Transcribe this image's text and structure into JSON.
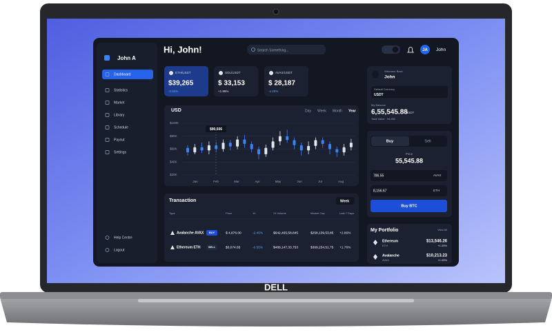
{
  "brand": "DELL",
  "sidebar": {
    "user": "John A",
    "menu": [
      "Dashboard",
      "Statistics",
      "Market",
      "Library",
      "Schedule",
      "Payout",
      "Settings"
    ],
    "footer": [
      "Help Centre",
      "Logout"
    ]
  },
  "header": {
    "greeting": "Hi, John!",
    "search": "Search Something...",
    "avatar": "JA",
    "user": "John"
  },
  "tickers": [
    {
      "pair": "ETH/USDT",
      "price": "$39,265",
      "change": "-2.55%"
    },
    {
      "pair": "SOL/USDT",
      "price": "$ 33,153",
      "change": "+1.95%"
    },
    {
      "pair": "AVAX/USDT",
      "price": "$ 28,187",
      "change": "-4.25%"
    }
  ],
  "price_chart": {
    "currency": "USD",
    "ranges": [
      "Day",
      "Week",
      "Month",
      "Year"
    ],
    "tooltip": "$90,506",
    "ylim": [
      20,
      100
    ],
    "yticks": [
      {
        "value": 100,
        "label": "$100K"
      },
      {
        "value": 80,
        "label": "$80K"
      },
      {
        "value": 60,
        "label": "$60K"
      },
      {
        "value": 40,
        "label": "$40K"
      },
      {
        "value": 20,
        "label": "$20K"
      }
    ],
    "months": [
      "Jan",
      "Feb",
      "Mar",
      "Apr",
      "May",
      "Jun",
      "Jul",
      "Aug"
    ],
    "open": [
      62,
      55,
      63,
      58,
      66,
      60,
      70,
      64,
      75,
      68,
      60,
      52,
      62,
      72,
      80,
      74,
      66,
      58,
      65,
      74,
      68,
      60,
      55,
      63
    ],
    "close": [
      55,
      63,
      58,
      66,
      60,
      70,
      64,
      75,
      68,
      60,
      52,
      62,
      72,
      80,
      74,
      66,
      58,
      65,
      74,
      68,
      60,
      55,
      63,
      70
    ],
    "low": [
      50,
      52,
      54,
      52,
      55,
      56,
      58,
      60,
      62,
      55,
      44,
      48,
      58,
      66,
      70,
      60,
      50,
      52,
      60,
      62,
      52,
      48,
      50,
      58
    ],
    "high": [
      66,
      68,
      70,
      72,
      71,
      75,
      74,
      80,
      82,
      72,
      64,
      67,
      78,
      88,
      90,
      78,
      70,
      72,
      78,
      78,
      72,
      64,
      68,
      76
    ]
  },
  "transactions": {
    "title": "Transaction",
    "period": "Week",
    "columns": [
      "Type",
      "Price",
      "1h",
      "24 Volume",
      "Market Cap",
      "Last 7 Days"
    ],
    "rows": [
      {
        "name": "Avalanche AVAX",
        "badge": "BUY",
        "cells": [
          "$ 4,876.00",
          "-2.45%",
          "$642,465,58,845",
          "$258,139,53,85",
          "+2.86%"
        ]
      },
      {
        "name": "Ethereum ETH",
        "badge": "SELL",
        "cells": [
          "$3,074.65",
          "-0.55%",
          "$489,147,33,753",
          "$369,234,51,75",
          "+1.76%"
        ]
      }
    ]
  },
  "profile": {
    "welcome": "Welcome Back",
    "name": "John",
    "currency_label": "Default Currency",
    "currency": "USDT",
    "balance_label": "My Balance",
    "balance": "6,55,545.88",
    "balance_unit": "USDT",
    "total": "Total Value : 94,652"
  },
  "trade": {
    "tabs": [
      "Buy",
      "Sell"
    ],
    "price_label": "Price",
    "price": "55,545.88",
    "inputs": [
      {
        "amount": "786.55",
        "asset": "AVAX"
      },
      {
        "amount": "8,156.67",
        "asset": "ETH"
      }
    ],
    "button": "Buy BTC"
  },
  "portfolio": {
    "title": "My Portfolio",
    "link": "View All",
    "items": [
      {
        "name": "Ethereum",
        "symbol": "ETH",
        "value": "$13,546.26",
        "change": "+1.05%"
      },
      {
        "name": "Avalanche",
        "symbol": "AVAX",
        "value": "$10,213.23",
        "change": "+1.05%"
      }
    ]
  }
}
